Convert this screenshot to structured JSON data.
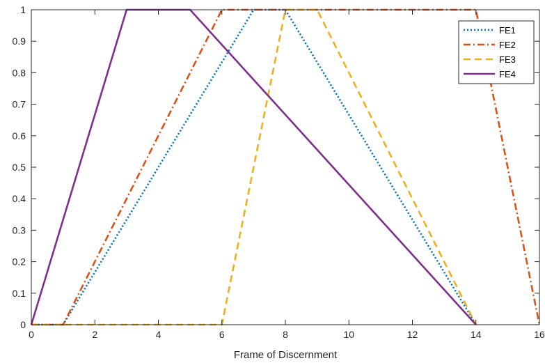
{
  "chart_data": {
    "type": "line",
    "title": "",
    "xlabel": "Frame of Discernment",
    "ylabel": "",
    "xlim": [
      0,
      16
    ],
    "ylim": [
      0,
      1
    ],
    "xticks": [
      0,
      2,
      4,
      6,
      8,
      10,
      12,
      14,
      16
    ],
    "yticks": [
      0,
      0.1,
      0.2,
      0.3,
      0.4,
      0.5,
      0.6,
      0.7,
      0.8,
      0.9,
      1
    ],
    "grid": false,
    "legend_position": "top-right",
    "series": [
      {
        "name": "FE1",
        "color": "#0072BD",
        "style": "dotted",
        "x": [
          0,
          1,
          7,
          8,
          14
        ],
        "y": [
          0,
          0,
          1,
          1,
          0
        ]
      },
      {
        "name": "FE2",
        "color": "#D95319",
        "style": "dashdot",
        "x": [
          0,
          1,
          6,
          14,
          16
        ],
        "y": [
          0,
          0,
          1,
          1,
          0
        ]
      },
      {
        "name": "FE3",
        "color": "#EDB120",
        "style": "dashed",
        "x": [
          0,
          6,
          8,
          9,
          14
        ],
        "y": [
          0,
          0,
          1,
          1,
          0
        ]
      },
      {
        "name": "FE4",
        "color": "#7E2F8E",
        "style": "solid",
        "x": [
          0,
          3,
          5,
          14
        ],
        "y": [
          0,
          1,
          1,
          0
        ]
      }
    ]
  }
}
